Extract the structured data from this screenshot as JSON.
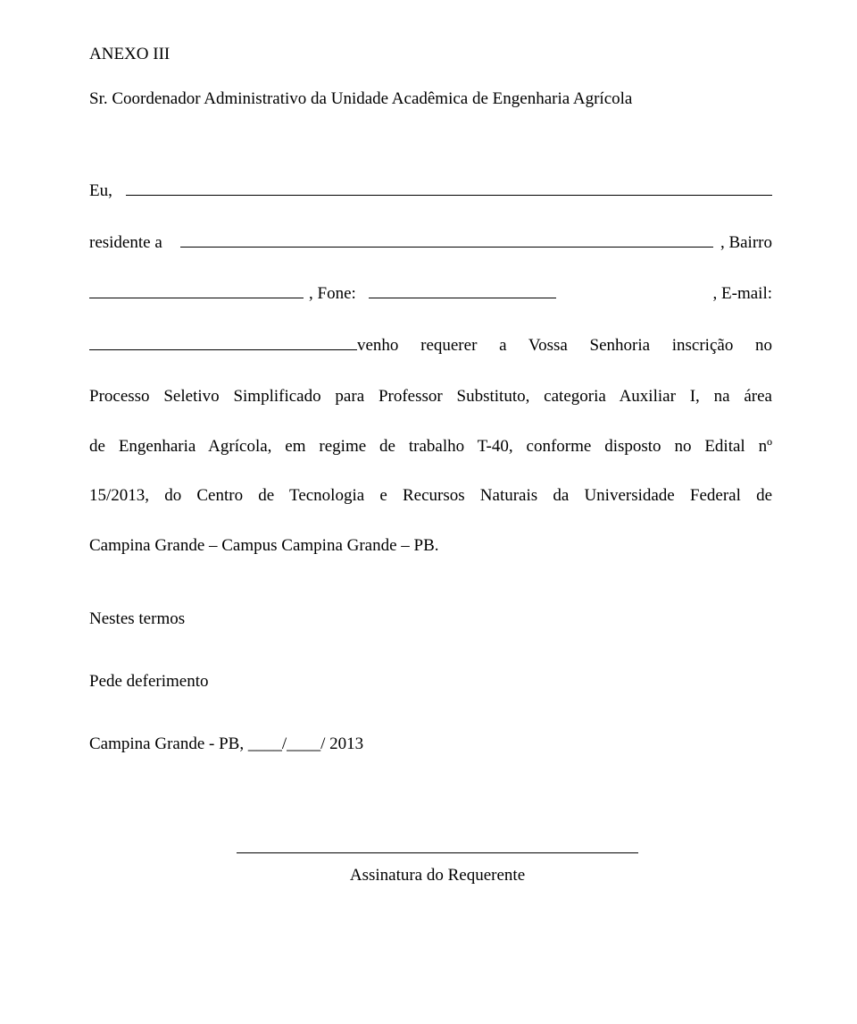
{
  "title": "ANEXO III",
  "subtitle": "Sr. Coordenador Administrativo da Unidade Acadêmica de Engenharia Agrícola",
  "form": {
    "eu_label": "Eu,",
    "residente_label": "residente   a",
    "bairro_trail": ",  Bairro",
    "fone_label": ",     Fone:",
    "email_label": ",     E-mail:",
    "venho_text": "venho   requerer   a   Vossa   Senhoria   inscrição   no",
    "body_line1": "Processo Seletivo Simplificado para Professor Substituto, categoria Auxiliar I, na área",
    "body_line2": "de Engenharia Agrícola, em regime de trabalho T-40, conforme disposto no Edital nº",
    "body_line3": "15/2013, do Centro de Tecnologia e Recursos Naturais da Universidade Federal de",
    "body_line4": "Campina Grande – Campus Campina Grande – PB."
  },
  "nestes": "Nestes termos",
  "pede": "Pede deferimento",
  "date_line": "Campina Grande - PB, ____/____/ 2013",
  "signature_label": "Assinatura do Requerente",
  "colors": {
    "background": "#ffffff",
    "text": "#000000"
  },
  "typography": {
    "font_family": "Times New Roman",
    "font_size_pt": 14
  }
}
